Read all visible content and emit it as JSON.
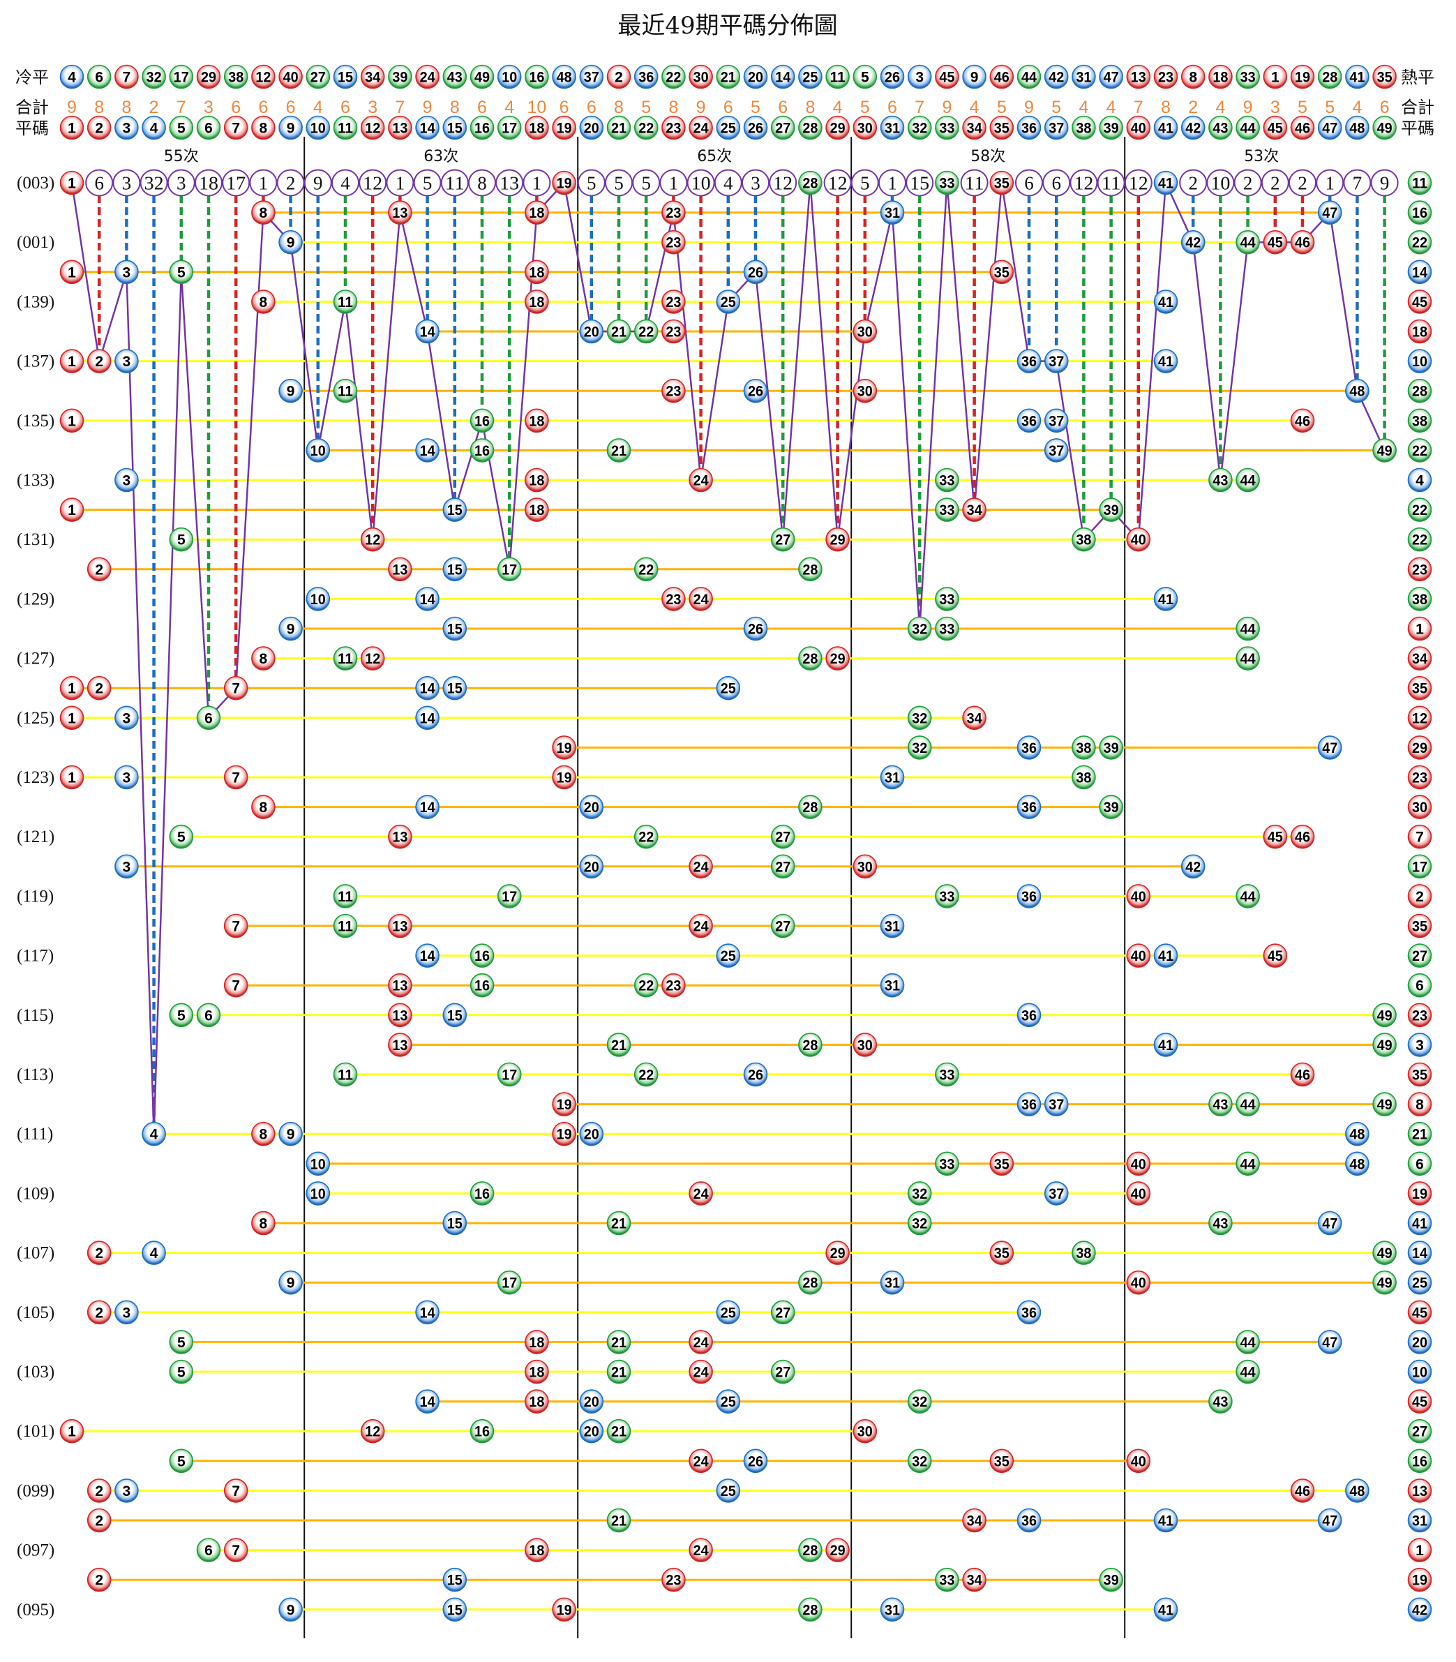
{
  "chart_data": {
    "type": "scatter",
    "title": "最近49期平碼分佈圖",
    "labels": {
      "cold": "冷平",
      "hot": "熱平",
      "total": "合計",
      "numbers": "平碼"
    },
    "cold_to_hot": [
      4,
      6,
      7,
      32,
      17,
      29,
      38,
      12,
      40,
      27,
      15,
      34,
      39,
      24,
      43,
      49,
      10,
      16,
      48,
      37,
      2,
      36,
      22,
      30,
      21,
      20,
      14,
      25,
      11,
      5,
      26,
      3,
      45,
      9,
      46,
      44,
      42,
      31,
      47,
      13,
      23,
      8,
      18,
      33,
      1,
      19,
      28,
      41,
      35
    ],
    "numbers": [
      1,
      2,
      3,
      4,
      5,
      6,
      7,
      8,
      9,
      10,
      11,
      12,
      13,
      14,
      15,
      16,
      17,
      18,
      19,
      20,
      21,
      22,
      23,
      24,
      25,
      26,
      27,
      28,
      29,
      30,
      31,
      32,
      33,
      34,
      35,
      36,
      37,
      38,
      39,
      40,
      41,
      42,
      43,
      44,
      45,
      46,
      47,
      48,
      49
    ],
    "totals": [
      9,
      8,
      8,
      2,
      7,
      3,
      6,
      6,
      6,
      4,
      6,
      3,
      7,
      9,
      8,
      6,
      4,
      10,
      6,
      6,
      8,
      5,
      8,
      9,
      6,
      5,
      6,
      8,
      4,
      5,
      6,
      7,
      9,
      4,
      5,
      9,
      5,
      4,
      4,
      7,
      8,
      2,
      4,
      9,
      3,
      5,
      5,
      4,
      6
    ],
    "groups": [
      {
        "label": "55次",
        "from": 1,
        "to": 9
      },
      {
        "label": "63次",
        "from": 10,
        "to": 19
      },
      {
        "label": "65次",
        "from": 20,
        "to": 29
      },
      {
        "label": "58次",
        "from": 30,
        "to": 39
      },
      {
        "label": "53次",
        "from": 40,
        "to": 49
      }
    ],
    "latest_omission": [
      null,
      6,
      3,
      32,
      3,
      18,
      17,
      1,
      2,
      9,
      4,
      12,
      1,
      5,
      11,
      8,
      13,
      1,
      null,
      5,
      5,
      5,
      1,
      10,
      4,
      3,
      12,
      null,
      12,
      5,
      1,
      15,
      null,
      11,
      null,
      6,
      6,
      12,
      11,
      12,
      null,
      2,
      10,
      2,
      2,
      2,
      1,
      7,
      9
    ],
    "draws": [
      {
        "period": "(003)",
        "numbers": [
          1,
          19,
          28,
          33,
          35,
          41
        ],
        "special": 11
      },
      {
        "numbers": [
          8,
          13,
          18,
          23,
          31,
          47
        ],
        "special": 16
      },
      {
        "period": "(001)",
        "numbers": [
          9,
          23,
          42,
          44,
          45,
          46
        ],
        "special": 22
      },
      {
        "numbers": [
          1,
          3,
          5,
          18,
          26,
          35
        ],
        "special": 14
      },
      {
        "period": "(139)",
        "numbers": [
          8,
          11,
          18,
          23,
          25,
          41
        ],
        "special": 45
      },
      {
        "numbers": [
          14,
          20,
          21,
          22,
          23,
          30
        ],
        "special": 18
      },
      {
        "period": "(137)",
        "numbers": [
          1,
          2,
          3,
          36,
          37,
          41
        ],
        "special": 10
      },
      {
        "numbers": [
          9,
          11,
          23,
          26,
          30,
          48
        ],
        "special": 28
      },
      {
        "period": "(135)",
        "numbers": [
          1,
          16,
          18,
          36,
          37,
          46
        ],
        "special": 38
      },
      {
        "numbers": [
          10,
          14,
          16,
          21,
          37,
          49
        ],
        "special": 22
      },
      {
        "period": "(133)",
        "numbers": [
          3,
          18,
          24,
          33,
          43,
          44
        ],
        "special": 4
      },
      {
        "numbers": [
          1,
          15,
          18,
          33,
          34,
          39
        ],
        "special": 22
      },
      {
        "period": "(131)",
        "numbers": [
          5,
          12,
          27,
          29,
          38,
          40
        ],
        "special": 22
      },
      {
        "numbers": [
          2,
          13,
          15,
          17,
          22,
          28
        ],
        "special": 23
      },
      {
        "period": "(129)",
        "numbers": [
          10,
          14,
          23,
          24,
          33,
          41
        ],
        "special": 38
      },
      {
        "numbers": [
          9,
          15,
          26,
          32,
          33,
          44
        ],
        "special": 1
      },
      {
        "period": "(127)",
        "numbers": [
          8,
          11,
          12,
          28,
          29,
          44
        ],
        "special": 34
      },
      {
        "numbers": [
          1,
          2,
          7,
          14,
          15,
          25
        ],
        "special": 35
      },
      {
        "period": "(125)",
        "numbers": [
          1,
          3,
          6,
          14,
          32,
          34
        ],
        "special": 12
      },
      {
        "numbers": [
          19,
          32,
          36,
          38,
          39,
          47
        ],
        "special": 29
      },
      {
        "period": "(123)",
        "numbers": [
          1,
          3,
          7,
          19,
          31,
          38
        ],
        "special": 23
      },
      {
        "numbers": [
          8,
          14,
          20,
          28,
          36,
          39
        ],
        "special": 30
      },
      {
        "period": "(121)",
        "numbers": [
          5,
          13,
          22,
          27,
          45,
          46
        ],
        "special": 7
      },
      {
        "numbers": [
          3,
          20,
          24,
          27,
          30,
          42
        ],
        "special": 17
      },
      {
        "period": "(119)",
        "numbers": [
          11,
          17,
          33,
          36,
          40,
          44
        ],
        "special": 2
      },
      {
        "numbers": [
          7,
          11,
          13,
          24,
          27,
          31
        ],
        "special": 35
      },
      {
        "period": "(117)",
        "numbers": [
          14,
          16,
          25,
          40,
          41,
          45
        ],
        "special": 27
      },
      {
        "numbers": [
          7,
          13,
          16,
          22,
          23,
          31
        ],
        "special": 6
      },
      {
        "period": "(115)",
        "numbers": [
          5,
          6,
          13,
          15,
          36,
          49
        ],
        "special": 23
      },
      {
        "numbers": [
          13,
          21,
          28,
          30,
          41,
          49
        ],
        "special": 3
      },
      {
        "period": "(113)",
        "numbers": [
          11,
          17,
          22,
          26,
          33,
          46
        ],
        "special": 35
      },
      {
        "numbers": [
          19,
          36,
          37,
          43,
          44,
          49
        ],
        "special": 8
      },
      {
        "period": "(111)",
        "numbers": [
          4,
          8,
          9,
          19,
          20,
          48
        ],
        "special": 21
      },
      {
        "numbers": [
          10,
          33,
          35,
          40,
          44,
          48
        ],
        "special": 6
      },
      {
        "period": "(109)",
        "numbers": [
          10,
          16,
          24,
          32,
          37,
          40
        ],
        "special": 19
      },
      {
        "numbers": [
          8,
          15,
          21,
          32,
          43,
          47
        ],
        "special": 41
      },
      {
        "period": "(107)",
        "numbers": [
          2,
          4,
          29,
          35,
          38,
          49
        ],
        "special": 14
      },
      {
        "numbers": [
          9,
          17,
          28,
          31,
          40,
          49
        ],
        "special": 25
      },
      {
        "period": "(105)",
        "numbers": [
          2,
          3,
          14,
          25,
          27,
          36
        ],
        "special": 45
      },
      {
        "numbers": [
          5,
          18,
          21,
          24,
          44,
          47
        ],
        "special": 20
      },
      {
        "period": "(103)",
        "numbers": [
          5,
          18,
          21,
          24,
          27,
          44
        ],
        "special": 10
      },
      {
        "numbers": [
          14,
          18,
          20,
          25,
          32,
          43
        ],
        "special": 45
      },
      {
        "period": "(101)",
        "numbers": [
          1,
          12,
          16,
          20,
          21,
          30
        ],
        "special": 27
      },
      {
        "numbers": [
          5,
          24,
          26,
          32,
          35,
          40
        ],
        "special": 16
      },
      {
        "period": "(099)",
        "numbers": [
          2,
          3,
          7,
          25,
          46,
          48
        ],
        "special": 13
      },
      {
        "numbers": [
          2,
          21,
          34,
          36,
          41,
          47
        ],
        "special": 31
      },
      {
        "period": "(097)",
        "numbers": [
          6,
          7,
          18,
          24,
          28,
          29
        ],
        "special": 1
      },
      {
        "numbers": [
          2,
          15,
          23,
          33,
          34,
          39
        ],
        "special": 19
      },
      {
        "period": "(095)",
        "numbers": [
          9,
          15,
          19,
          28,
          31,
          41
        ],
        "special": 42
      }
    ],
    "ball_colors": {
      "red": [
        1,
        2,
        7,
        8,
        12,
        13,
        18,
        19,
        23,
        24,
        29,
        30,
        34,
        35,
        40,
        45,
        46
      ],
      "blue": [
        3,
        4,
        9,
        10,
        14,
        15,
        20,
        25,
        26,
        31,
        36,
        37,
        41,
        42,
        47,
        48
      ],
      "green": [
        5,
        6,
        11,
        16,
        17,
        21,
        22,
        27,
        28,
        32,
        33,
        38,
        39,
        43,
        44,
        49
      ]
    },
    "colors": {
      "red": "#d42424",
      "blue": "#1b6ec2",
      "green": "#1f9c3c",
      "omission_line": "#7434a8",
      "row_line_even": "#ffff1a",
      "row_line_odd": "#ffb300",
      "divider": "#111111",
      "total_text": "#f0873a"
    }
  }
}
